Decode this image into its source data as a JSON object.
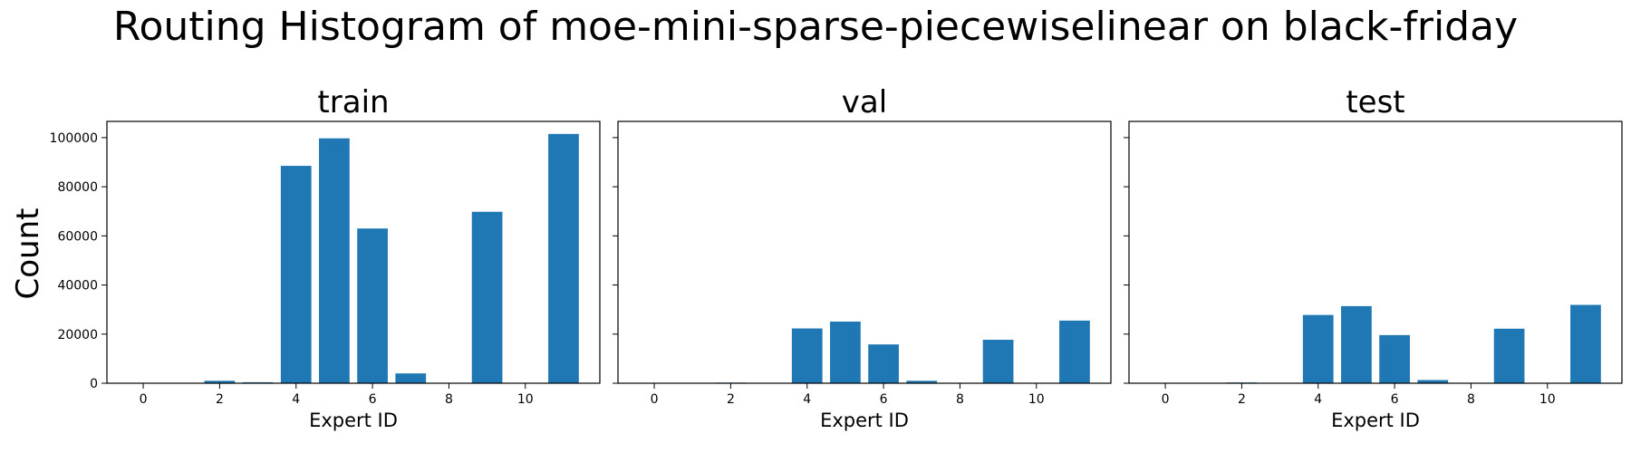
{
  "figure": {
    "title": "Routing Histogram of moe-mini-sparse-piecewiselinear on black-friday",
    "shared_ylabel": "Count"
  },
  "colors": {
    "bar": "#1f77b4",
    "axis": "#000000",
    "background": "#ffffff"
  },
  "chart_data": [
    {
      "type": "bar",
      "title": "train",
      "xlabel": "Expert ID",
      "ylabel": "Count",
      "categories": [
        0,
        1,
        2,
        3,
        4,
        5,
        6,
        7,
        8,
        9,
        10,
        11
      ],
      "values": [
        0,
        0,
        1000,
        400,
        88500,
        99700,
        63000,
        4000,
        0,
        69800,
        0,
        101500
      ],
      "xticks": [
        0,
        2,
        4,
        6,
        8,
        10
      ],
      "xtick_labels": [
        "0",
        "2",
        "4",
        "6",
        "8",
        "10"
      ],
      "yticks": [
        0,
        20000,
        40000,
        60000,
        80000,
        100000
      ],
      "ytick_labels": [
        "0",
        "20000",
        "40000",
        "60000",
        "80000",
        "100000"
      ],
      "xlim": [
        -0.95,
        11.95
      ],
      "ylim": [
        0,
        106600
      ]
    },
    {
      "type": "bar",
      "title": "val",
      "xlabel": "Expert ID",
      "ylabel": "",
      "categories": [
        0,
        1,
        2,
        3,
        4,
        5,
        6,
        7,
        8,
        9,
        10,
        11
      ],
      "values": [
        0,
        0,
        250,
        100,
        22300,
        25100,
        15800,
        1000,
        0,
        17700,
        0,
        25500
      ],
      "xticks": [
        0,
        2,
        4,
        6,
        8,
        10
      ],
      "xtick_labels": [
        "0",
        "2",
        "4",
        "6",
        "8",
        "10"
      ],
      "yticks": [
        0,
        20000,
        40000,
        60000,
        80000,
        100000
      ],
      "ytick_labels": [
        "",
        "",
        "",
        "",
        "",
        ""
      ],
      "xlim": [
        -0.95,
        11.95
      ],
      "ylim": [
        0,
        106600
      ]
    },
    {
      "type": "bar",
      "title": "test",
      "xlabel": "Expert ID",
      "ylabel": "",
      "categories": [
        0,
        1,
        2,
        3,
        4,
        5,
        6,
        7,
        8,
        9,
        10,
        11
      ],
      "values": [
        0,
        0,
        300,
        120,
        27800,
        31400,
        19600,
        1300,
        0,
        22200,
        0,
        31900
      ],
      "xticks": [
        0,
        2,
        4,
        6,
        8,
        10
      ],
      "xtick_labels": [
        "0",
        "2",
        "4",
        "6",
        "8",
        "10"
      ],
      "yticks": [
        0,
        20000,
        40000,
        60000,
        80000,
        100000
      ],
      "ytick_labels": [
        "",
        "",
        "",
        "",
        "",
        ""
      ],
      "xlim": [
        -0.95,
        11.95
      ],
      "ylim": [
        0,
        106600
      ]
    }
  ]
}
